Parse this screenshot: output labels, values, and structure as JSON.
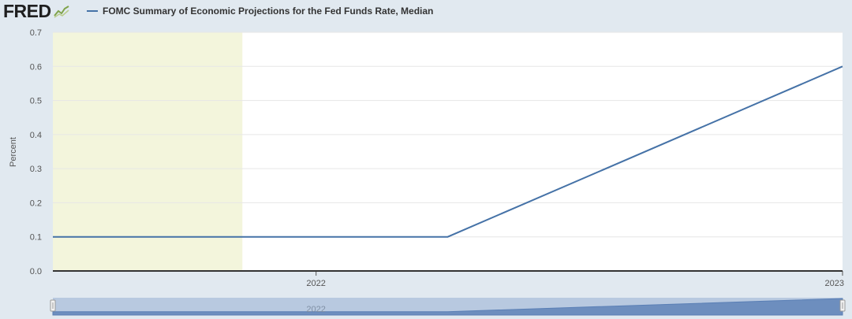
{
  "header": {
    "logo_text": "FRED",
    "logo_mark_icon": "chart-line-icon"
  },
  "legend": {
    "series_label": "FOMC Summary of Economic Projections for the Fed Funds Rate, Median",
    "swatch_color": "#4572a7"
  },
  "colors": {
    "line": "#4572a7",
    "recession_band": "#f3f5dc",
    "plot_background": "#ffffff",
    "page_background": "#e1e9f0",
    "navigator_fill": "#a9bddb",
    "navigator_series": "#5a7fb5"
  },
  "chart_data": {
    "type": "line",
    "title": "",
    "xlabel": "",
    "ylabel": "Percent",
    "ylim": [
      0,
      0.7
    ],
    "yticks": [
      0.0,
      0.1,
      0.2,
      0.3,
      0.4,
      0.5,
      0.6,
      0.7
    ],
    "ytick_labels": [
      "0.0",
      "0.1",
      "0.2",
      "0.3",
      "0.4",
      "0.5",
      "0.6",
      "0.7"
    ],
    "xlim": [
      2021.5,
      2023.0
    ],
    "xticks": [
      2022,
      2023
    ],
    "xtick_labels": [
      "2022",
      "2023"
    ],
    "grid": true,
    "recession_shading": [
      [
        2021.5,
        2021.86
      ]
    ],
    "series": [
      {
        "name": "FOMC Summary of Economic Projections for the Fed Funds Rate, Median",
        "x": [
          2021.5,
          2022.25,
          2023.0
        ],
        "y": [
          0.1,
          0.1,
          0.6
        ]
      }
    ],
    "navigator_label": "2022"
  }
}
